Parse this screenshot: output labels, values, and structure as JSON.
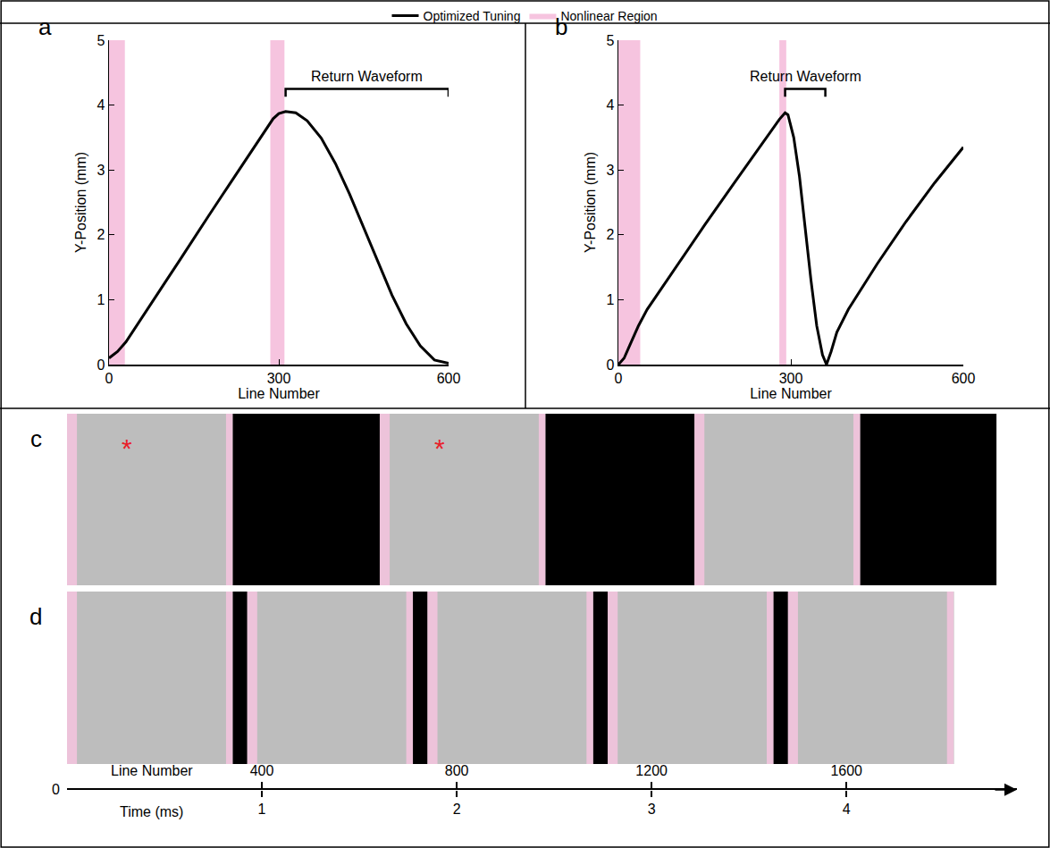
{
  "chart_data": [
    {
      "label": "a",
      "type": "line",
      "x_label": "Line Number",
      "y_label": "Y-Position (mm)",
      "xlim": [
        0,
        600
      ],
      "xticks": [
        0,
        300,
        600
      ],
      "ylim": [
        0,
        5
      ],
      "yticks": [
        0,
        1,
        2,
        3,
        4,
        5
      ],
      "x": [
        0,
        15,
        30,
        50,
        75,
        100,
        125,
        150,
        175,
        200,
        225,
        250,
        275,
        290,
        300,
        312,
        330,
        350,
        375,
        400,
        425,
        450,
        475,
        500,
        525,
        550,
        575,
        600
      ],
      "series": [
        {
          "name": "Optimized Tuning",
          "color": "#000000",
          "values": [
            0.1,
            0.2,
            0.35,
            0.62,
            0.95,
            1.28,
            1.61,
            1.95,
            2.28,
            2.61,
            2.94,
            3.28,
            3.61,
            3.79,
            3.87,
            3.9,
            3.88,
            3.76,
            3.49,
            3.1,
            2.63,
            2.11,
            1.58,
            1.07,
            0.63,
            0.29,
            0.07,
            0.02
          ]
        }
      ],
      "regions": {
        "name": "Nonlinear Region",
        "color": "#f6c4df",
        "spans": [
          [
            0,
            28
          ],
          [
            285,
            310
          ]
        ]
      },
      "bracket": {
        "text": "Return Waveform",
        "x0": 312,
        "x1": 600,
        "y": 4.25
      }
    },
    {
      "label": "b",
      "type": "line",
      "x_label": "Line Number",
      "y_label": "Y-Position (mm)",
      "xlim": [
        0,
        600
      ],
      "xticks": [
        0,
        300,
        600
      ],
      "ylim": [
        0,
        5
      ],
      "yticks": [
        0,
        1,
        2,
        3,
        4,
        5
      ],
      "x": [
        0,
        10,
        20,
        35,
        50,
        100,
        150,
        200,
        250,
        280,
        290,
        295,
        305,
        315,
        325,
        335,
        345,
        355,
        362,
        370,
        380,
        400,
        450,
        500,
        550,
        600
      ],
      "series": [
        {
          "name": "Optimized Tuning",
          "color": "#000000",
          "values": [
            0,
            0.1,
            0.3,
            0.6,
            0.85,
            1.5,
            2.15,
            2.78,
            3.4,
            3.78,
            3.88,
            3.85,
            3.5,
            2.9,
            2.1,
            1.3,
            0.6,
            0.15,
            0,
            0.2,
            0.5,
            0.85,
            1.55,
            2.2,
            2.8,
            3.35
          ]
        }
      ],
      "regions": {
        "name": "Nonlinear Region",
        "color": "#f6c4df",
        "spans": [
          [
            0,
            38
          ],
          [
            280,
            292
          ]
        ]
      },
      "bracket": {
        "text": "Return Waveform",
        "x0": 290,
        "x1": 360,
        "y": 4.25
      }
    }
  ],
  "image_rows": [
    {
      "label": "c",
      "extent": [
        0,
        1908
      ],
      "frames": [
        [
          0,
          340
        ],
        [
          642,
          982
        ],
        [
          1288,
          1628
        ]
      ],
      "marks": [
        {
          "text": "*",
          "frame": 0,
          "color": "#e8202a"
        },
        {
          "text": "*",
          "frame": 1,
          "color": "#e8202a"
        }
      ]
    },
    {
      "label": "d",
      "extent": [
        0,
        1820
      ],
      "frames": [
        [
          0,
          340
        ],
        [
          370,
          710
        ],
        [
          740,
          1080
        ],
        [
          1110,
          1450
        ],
        [
          1480,
          1820
        ]
      ],
      "marks": []
    }
  ],
  "timeline": {
    "line_label": "Line Number",
    "time_label": "Time (ms)",
    "xlim": [
      0,
      1950
    ],
    "xticks": [
      400,
      800,
      1200,
      1600
    ],
    "time_lim": [
      0,
      4.875
    ],
    "time_ticks": [
      1,
      2,
      3,
      4
    ]
  }
}
